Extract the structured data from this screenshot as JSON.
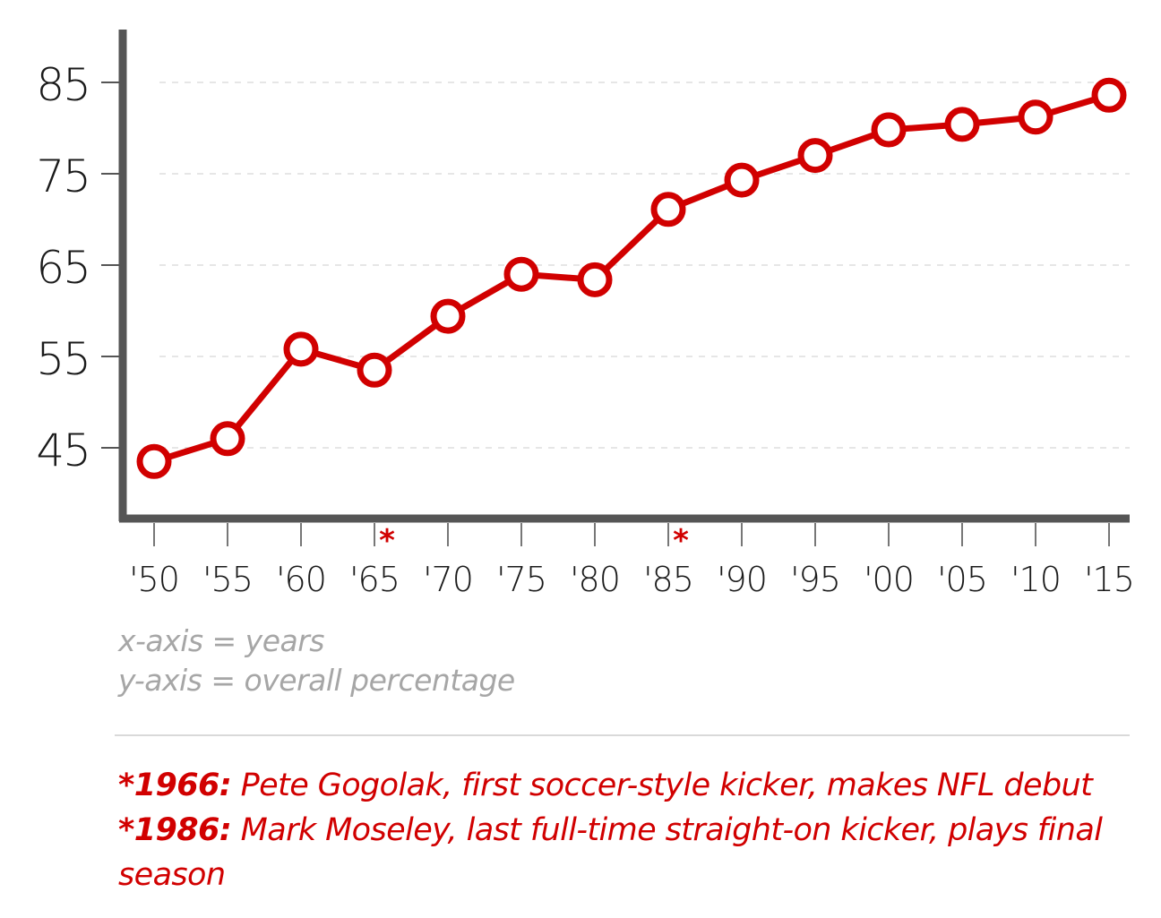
{
  "chart_data": {
    "type": "line",
    "x": [
      "'50",
      "'55",
      "'60",
      "'65",
      "'70",
      "'75",
      "'80",
      "'85",
      "'90",
      "'95",
      "'00",
      "'05",
      "'10",
      "'15"
    ],
    "series": [
      {
        "values": [
          43.5,
          46.0,
          55.8,
          53.5,
          59.4,
          64.0,
          63.4,
          71.1,
          74.3,
          77.0,
          79.8,
          80.4,
          81.2,
          83.6
        ]
      }
    ],
    "yticks": [
      45,
      55,
      65,
      75,
      85
    ],
    "ylim": [
      37.5,
      90.5
    ],
    "grid": true,
    "line_color": "#d10000",
    "axis_color": "#555555",
    "annotations": [
      {
        "after": "'65",
        "label": "*"
      },
      {
        "after": "'85",
        "label": "*"
      }
    ]
  },
  "axis_notes": {
    "x": "x-axis = years",
    "y": "y-axis = overall percentage"
  },
  "footnotes": [
    {
      "key": "*1966:",
      "text": "Pete Gogolak, first soccer-style kicker, makes NFL debut"
    },
    {
      "key": "*1986:",
      "text": "Mark Moseley, last full-time straight-on kicker, plays final season"
    }
  ]
}
